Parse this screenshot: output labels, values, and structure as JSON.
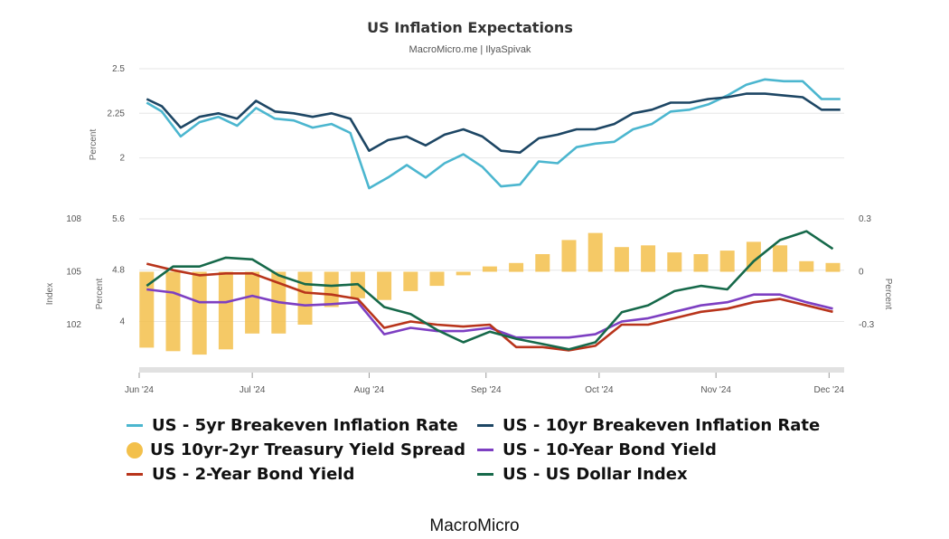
{
  "header": {
    "title": "US Inflation Expectations",
    "subtitle": "MacroMicro.me | IlyaSpivak"
  },
  "footer": {
    "label": "MacroMicro"
  },
  "colors": {
    "breakeven_5yr": "#4bb6cf",
    "breakeven_10yr": "#1d4664",
    "spread": "#f3c04b",
    "bond_10yr": "#7d3fc2",
    "bond_2yr": "#b8341b",
    "dollar_index": "#16694a",
    "grid": "#e6e6e6"
  },
  "legend": [
    {
      "label": "US - 5yr Breakeven Inflation Rate",
      "color": "#4bb6cf",
      "shape": "line"
    },
    {
      "label": "US - 10yr Breakeven Inflation Rate",
      "color": "#1d4664",
      "shape": "line"
    },
    {
      "label": "US 10yr-2yr Treasury Yield Spread",
      "color": "#f3c04b",
      "shape": "dot"
    },
    {
      "label": "US - 10-Year Bond Yield",
      "color": "#7d3fc2",
      "shape": "line"
    },
    {
      "label": "US - 2-Year Bond Yield",
      "color": "#b8341b",
      "shape": "line"
    },
    {
      "label": "US - US Dollar Index",
      "color": "#16694a",
      "shape": "line"
    }
  ],
  "chart_data": [
    {
      "type": "line",
      "title": "US Inflation Expectations",
      "subtitle": "MacroMicro.me | IlyaSpivak",
      "ylabel": "Percent",
      "yticks": [
        "2",
        "2.25",
        "2.5"
      ],
      "ylim": [
        1.8,
        2.5
      ],
      "x_range": [
        "2024-06-01",
        "2024-12-05"
      ],
      "grid": true,
      "series": [
        {
          "name": "US - 5yr Breakeven Inflation Rate",
          "color": "#4bb6cf",
          "x": [
            "2024-06-03",
            "2024-06-07",
            "2024-06-12",
            "2024-06-17",
            "2024-06-22",
            "2024-06-27",
            "2024-07-02",
            "2024-07-07",
            "2024-07-12",
            "2024-07-17",
            "2024-07-22",
            "2024-07-27",
            "2024-08-01",
            "2024-08-06",
            "2024-08-11",
            "2024-08-16",
            "2024-08-21",
            "2024-08-26",
            "2024-08-31",
            "2024-09-05",
            "2024-09-10",
            "2024-09-15",
            "2024-09-20",
            "2024-09-25",
            "2024-09-30",
            "2024-10-05",
            "2024-10-10",
            "2024-10-15",
            "2024-10-20",
            "2024-10-25",
            "2024-10-30",
            "2024-11-04",
            "2024-11-09",
            "2024-11-14",
            "2024-11-19",
            "2024-11-24",
            "2024-11-29",
            "2024-12-04"
          ],
          "values": [
            2.31,
            2.26,
            2.12,
            2.2,
            2.23,
            2.18,
            2.28,
            2.22,
            2.21,
            2.17,
            2.19,
            2.14,
            1.83,
            1.89,
            1.96,
            1.89,
            1.97,
            2.02,
            1.95,
            1.84,
            1.85,
            1.98,
            1.97,
            2.06,
            2.08,
            2.09,
            2.16,
            2.19,
            2.26,
            2.27,
            2.3,
            2.35,
            2.41,
            2.44,
            2.43,
            2.43,
            2.33,
            2.33
          ]
        },
        {
          "name": "US - 10yr Breakeven Inflation Rate",
          "color": "#1d4664",
          "x": [
            "2024-06-03",
            "2024-06-07",
            "2024-06-12",
            "2024-06-17",
            "2024-06-22",
            "2024-06-27",
            "2024-07-02",
            "2024-07-07",
            "2024-07-12",
            "2024-07-17",
            "2024-07-22",
            "2024-07-27",
            "2024-08-01",
            "2024-08-06",
            "2024-08-11",
            "2024-08-16",
            "2024-08-21",
            "2024-08-26",
            "2024-08-31",
            "2024-09-05",
            "2024-09-10",
            "2024-09-15",
            "2024-09-20",
            "2024-09-25",
            "2024-09-30",
            "2024-10-05",
            "2024-10-10",
            "2024-10-15",
            "2024-10-20",
            "2024-10-25",
            "2024-10-30",
            "2024-11-04",
            "2024-11-09",
            "2024-11-14",
            "2024-11-19",
            "2024-11-24",
            "2024-11-29",
            "2024-12-04"
          ],
          "values": [
            2.33,
            2.29,
            2.17,
            2.23,
            2.25,
            2.22,
            2.32,
            2.26,
            2.25,
            2.23,
            2.25,
            2.22,
            2.04,
            2.1,
            2.12,
            2.07,
            2.13,
            2.16,
            2.12,
            2.04,
            2.03,
            2.11,
            2.13,
            2.16,
            2.16,
            2.19,
            2.25,
            2.27,
            2.31,
            2.31,
            2.33,
            2.34,
            2.36,
            2.36,
            2.35,
            2.34,
            2.27,
            2.27
          ]
        }
      ]
    },
    {
      "type": "bar+line",
      "ylabel_left": "Percent",
      "ylabel_left_outer": "Index",
      "ylabel_right": "Percent",
      "yticks_left": [
        "4",
        "4.8",
        "5.6"
      ],
      "yticks_left_outer": [
        "102",
        "105",
        "108"
      ],
      "yticks_right": [
        "-0.3",
        "0",
        "0.3"
      ],
      "ylim_left": [
        3.4,
        5.6
      ],
      "ylim_left_outer": [
        100,
        108
      ],
      "ylim_right": [
        -0.5,
        0.3
      ],
      "xticks": [
        "Jun '24",
        "Jul '24",
        "Aug '24",
        "Sep '24",
        "Oct '24",
        "Nov '24",
        "Dec '24"
      ],
      "x_range": [
        "2024-06-01",
        "2024-12-05"
      ],
      "grid": true,
      "legend_position": "bottom",
      "series": [
        {
          "name": "US 10yr-2yr Treasury Yield Spread",
          "type": "bar",
          "axis": "right",
          "color": "#f3c04b",
          "x": [
            "2024-06-03",
            "2024-06-10",
            "2024-06-17",
            "2024-06-24",
            "2024-07-01",
            "2024-07-08",
            "2024-07-15",
            "2024-07-22",
            "2024-07-29",
            "2024-08-05",
            "2024-08-12",
            "2024-08-19",
            "2024-08-26",
            "2024-09-02",
            "2024-09-09",
            "2024-09-16",
            "2024-09-23",
            "2024-09-30",
            "2024-10-07",
            "2024-10-14",
            "2024-10-21",
            "2024-10-28",
            "2024-11-04",
            "2024-11-11",
            "2024-11-18",
            "2024-11-25",
            "2024-12-02"
          ],
          "values": [
            -0.43,
            -0.45,
            -0.47,
            -0.44,
            -0.35,
            -0.35,
            -0.3,
            -0.2,
            -0.15,
            -0.16,
            -0.11,
            -0.08,
            -0.02,
            0.03,
            0.05,
            0.1,
            0.18,
            0.22,
            0.14,
            0.15,
            0.11,
            0.1,
            0.12,
            0.17,
            0.15,
            0.06,
            0.05
          ]
        },
        {
          "name": "US - 10-Year Bond Yield",
          "type": "line",
          "axis": "left",
          "color": "#7d3fc2",
          "x": [
            "2024-06-03",
            "2024-06-10",
            "2024-06-17",
            "2024-06-24",
            "2024-07-01",
            "2024-07-08",
            "2024-07-15",
            "2024-07-22",
            "2024-07-29",
            "2024-08-05",
            "2024-08-12",
            "2024-08-19",
            "2024-08-26",
            "2024-09-02",
            "2024-09-09",
            "2024-09-16",
            "2024-09-23",
            "2024-09-30",
            "2024-10-07",
            "2024-10-14",
            "2024-10-21",
            "2024-10-28",
            "2024-11-04",
            "2024-11-11",
            "2024-11-18",
            "2024-11-25",
            "2024-12-02"
          ],
          "values": [
            4.5,
            4.45,
            4.3,
            4.3,
            4.4,
            4.3,
            4.25,
            4.27,
            4.3,
            3.8,
            3.9,
            3.85,
            3.85,
            3.9,
            3.75,
            3.75,
            3.75,
            3.8,
            4.0,
            4.05,
            4.15,
            4.25,
            4.3,
            4.42,
            4.42,
            4.3,
            4.2
          ]
        },
        {
          "name": "US - 2-Year Bond Yield",
          "type": "line",
          "axis": "left",
          "color": "#b8341b",
          "x": [
            "2024-06-03",
            "2024-06-10",
            "2024-06-17",
            "2024-06-24",
            "2024-07-01",
            "2024-07-08",
            "2024-07-15",
            "2024-07-22",
            "2024-07-29",
            "2024-08-05",
            "2024-08-12",
            "2024-08-19",
            "2024-08-26",
            "2024-09-02",
            "2024-09-09",
            "2024-09-16",
            "2024-09-23",
            "2024-09-30",
            "2024-10-07",
            "2024-10-14",
            "2024-10-21",
            "2024-10-28",
            "2024-11-04",
            "2024-11-11",
            "2024-11-18",
            "2024-11-25",
            "2024-12-02"
          ],
          "values": [
            4.9,
            4.8,
            4.72,
            4.75,
            4.75,
            4.6,
            4.45,
            4.42,
            4.35,
            3.9,
            4.0,
            3.95,
            3.92,
            3.95,
            3.6,
            3.6,
            3.55,
            3.62,
            3.95,
            3.95,
            4.05,
            4.15,
            4.2,
            4.3,
            4.35,
            4.25,
            4.15
          ]
        },
        {
          "name": "US - US Dollar Index",
          "type": "line",
          "axis": "left_outer",
          "color": "#16694a",
          "x": [
            "2024-06-03",
            "2024-06-10",
            "2024-06-17",
            "2024-06-24",
            "2024-07-01",
            "2024-07-08",
            "2024-07-15",
            "2024-07-22",
            "2024-07-29",
            "2024-08-05",
            "2024-08-12",
            "2024-08-19",
            "2024-08-26",
            "2024-09-02",
            "2024-09-09",
            "2024-09-16",
            "2024-09-23",
            "2024-09-30",
            "2024-10-07",
            "2024-10-14",
            "2024-10-21",
            "2024-10-28",
            "2024-11-04",
            "2024-11-11",
            "2024-11-18",
            "2024-11-25",
            "2024-12-02"
          ],
          "values": [
            104.2,
            105.3,
            105.3,
            105.8,
            105.7,
            104.8,
            104.3,
            104.2,
            104.3,
            103.0,
            102.6,
            101.7,
            101.0,
            101.6,
            101.2,
            100.9,
            100.6,
            101.0,
            102.7,
            103.1,
            103.9,
            104.2,
            104.0,
            105.6,
            106.8,
            107.3,
            106.3
          ]
        }
      ]
    }
  ]
}
